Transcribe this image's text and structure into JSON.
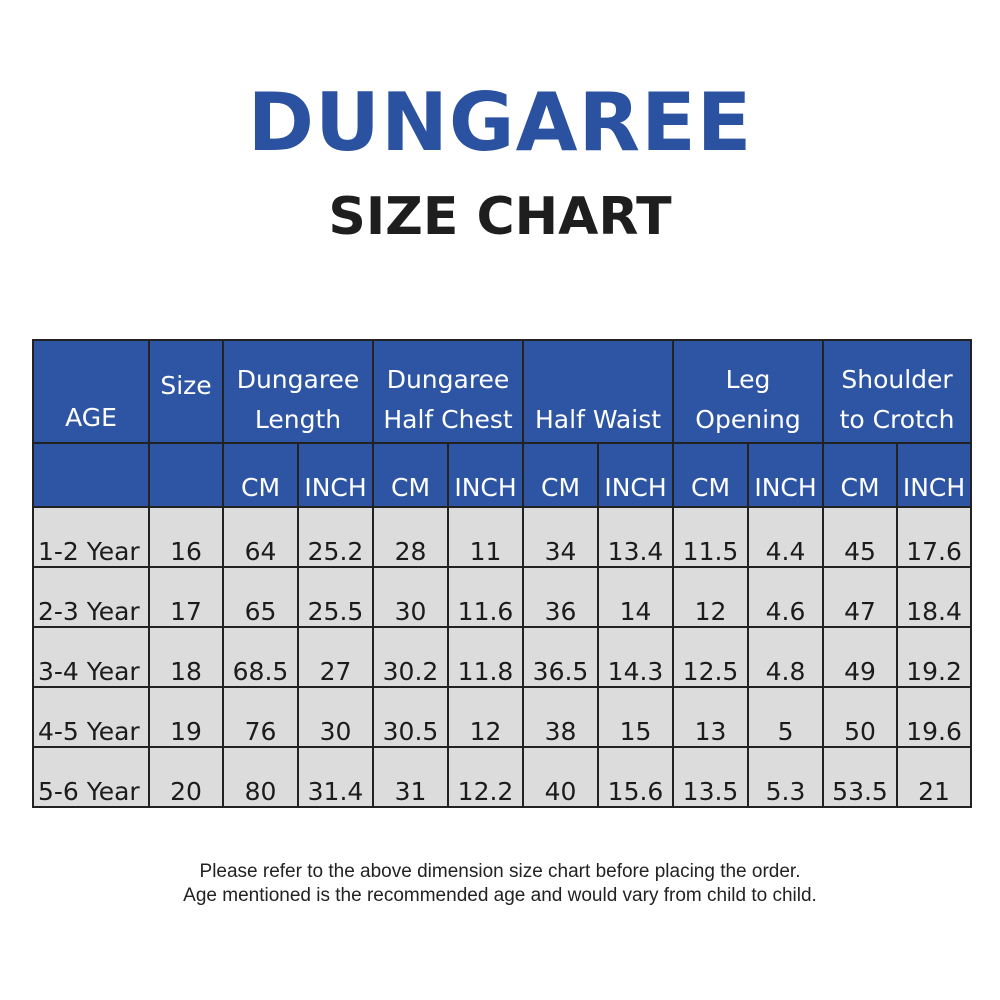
{
  "title": "DUNGAREE",
  "subtitle": "SIZE CHART",
  "header": {
    "age": "AGE",
    "size": "Size",
    "groups": [
      {
        "line1": "Dungaree",
        "line2": "Length"
      },
      {
        "line1": "Dungaree",
        "line2": "Half Chest"
      },
      {
        "line1": "",
        "line2": "Half Waist"
      },
      {
        "line1": "Leg",
        "line2": "Opening"
      },
      {
        "line1": "Shoulder",
        "line2": "to Crotch"
      }
    ],
    "unit_cm": "CM",
    "unit_inch": "INCH"
  },
  "rows": [
    [
      "1-2 Year",
      "16",
      "64",
      "25.2",
      "28",
      "11",
      "34",
      "13.4",
      "11.5",
      "4.4",
      "45",
      "17.6"
    ],
    [
      "2-3 Year",
      "17",
      "65",
      "25.5",
      "30",
      "11.6",
      "36",
      "14",
      "12",
      "4.6",
      "47",
      "18.4"
    ],
    [
      "3-4 Year",
      "18",
      "68.5",
      "27",
      "30.2",
      "11.8",
      "36.5",
      "14.3",
      "12.5",
      "4.8",
      "49",
      "19.2"
    ],
    [
      "4-5 Year",
      "19",
      "76",
      "30",
      "30.5",
      "12",
      "38",
      "15",
      "13",
      "5",
      "50",
      "19.6"
    ],
    [
      "5-6 Year",
      "20",
      "80",
      "31.4",
      "31",
      "12.2",
      "40",
      "15.6",
      "13.5",
      "5.3",
      "53.5",
      "21"
    ]
  ],
  "notes": [
    "Please refer to the above dimension size chart before placing the order.",
    "Age mentioned is the recommended age and would vary from child to child."
  ],
  "colors": {
    "title": "#2a52a0",
    "header_bg": "#2e55a3",
    "row_bg": "#dcdcdc",
    "border": "#222222"
  }
}
